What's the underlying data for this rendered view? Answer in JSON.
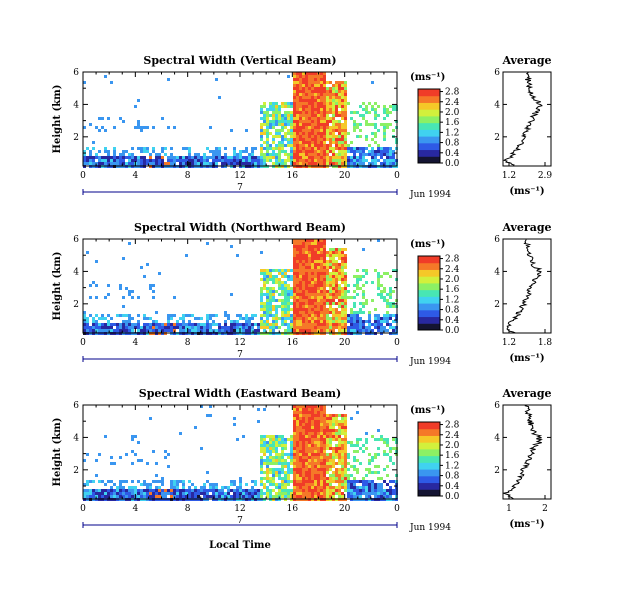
{
  "chart_data": [
    {
      "type": "heatmap",
      "title": "Spectral Width (Vertical Beam)",
      "ylabel": "Height (km)",
      "xticks": [
        "0",
        "4",
        "8",
        "12",
        "16",
        "20",
        "0"
      ],
      "yticks": [
        "2",
        "4",
        "6"
      ],
      "xlim": [
        0,
        24
      ],
      "ylim": [
        0.2,
        6
      ],
      "date_label": "7",
      "date_note": "Jun 1994",
      "colorbar": {
        "unit": "(ms⁻¹)",
        "ticks": [
          "0.0",
          "0.4",
          "0.8",
          "1.2",
          "1.6",
          "2.0",
          "2.4",
          "2.8"
        ],
        "range": [
          0,
          2.9
        ]
      },
      "average": {
        "title": "Average",
        "xlabel": "(ms⁻¹)",
        "xticks": [
          "1.2",
          "2.9"
        ],
        "yticks": [
          "2",
          "4",
          "6"
        ],
        "xlim": [
          1.0,
          3.0
        ],
        "ylim": [
          0.2,
          6
        ]
      }
    },
    {
      "type": "heatmap",
      "title": "Spectral Width (Northward Beam)",
      "ylabel": "Height (km)",
      "xticks": [
        "0",
        "4",
        "8",
        "12",
        "16",
        "20",
        "0"
      ],
      "yticks": [
        "2",
        "4",
        "6"
      ],
      "xlim": [
        0,
        24
      ],
      "ylim": [
        0.2,
        6
      ],
      "date_label": "7",
      "date_note": "Jun 1994",
      "colorbar": {
        "unit": "(ms⁻¹)",
        "ticks": [
          "0.0",
          "0.4",
          "0.8",
          "1.2",
          "1.6",
          "2.0",
          "2.4",
          "2.8"
        ],
        "range": [
          0,
          2.9
        ]
      },
      "average": {
        "title": "Average",
        "xlabel": "(ms⁻¹)",
        "xticks": [
          "1.2",
          "1.8"
        ],
        "yticks": [
          "2",
          "4",
          "6"
        ],
        "xlim": [
          1.0,
          2.0
        ],
        "ylim": [
          0.2,
          6
        ]
      }
    },
    {
      "type": "heatmap",
      "title": "Spectral Width (Eastward Beam)",
      "ylabel": "Height (km)",
      "xticks": [
        "0",
        "4",
        "8",
        "12",
        "16",
        "20",
        "0"
      ],
      "yticks": [
        "2",
        "4",
        "6"
      ],
      "xlim": [
        0,
        24
      ],
      "ylim": [
        0.2,
        6
      ],
      "date_label": "7",
      "date_note": "Jun 1994",
      "colorbar": {
        "unit": "(ms⁻¹)",
        "ticks": [
          "0.0",
          "0.4",
          "0.8",
          "1.2",
          "1.6",
          "2.0",
          "2.4",
          "2.8"
        ],
        "range": [
          0,
          2.9
        ]
      },
      "average": {
        "title": "Average",
        "xlabel": "(ms⁻¹)",
        "xticks": [
          "1",
          "2"
        ],
        "yticks": [
          "2",
          "4",
          "6"
        ],
        "xlim": [
          0.9,
          2.1
        ],
        "ylim": [
          0.2,
          6
        ]
      }
    }
  ],
  "xlabel": "Local Time",
  "colors": {
    "colormap": [
      "#141432",
      "#2828a0",
      "#2e5ae6",
      "#3a96f0",
      "#40d2f0",
      "#48e6b4",
      "#8cf064",
      "#d2f03c",
      "#f5c828",
      "#f57828",
      "#f03c28"
    ]
  }
}
